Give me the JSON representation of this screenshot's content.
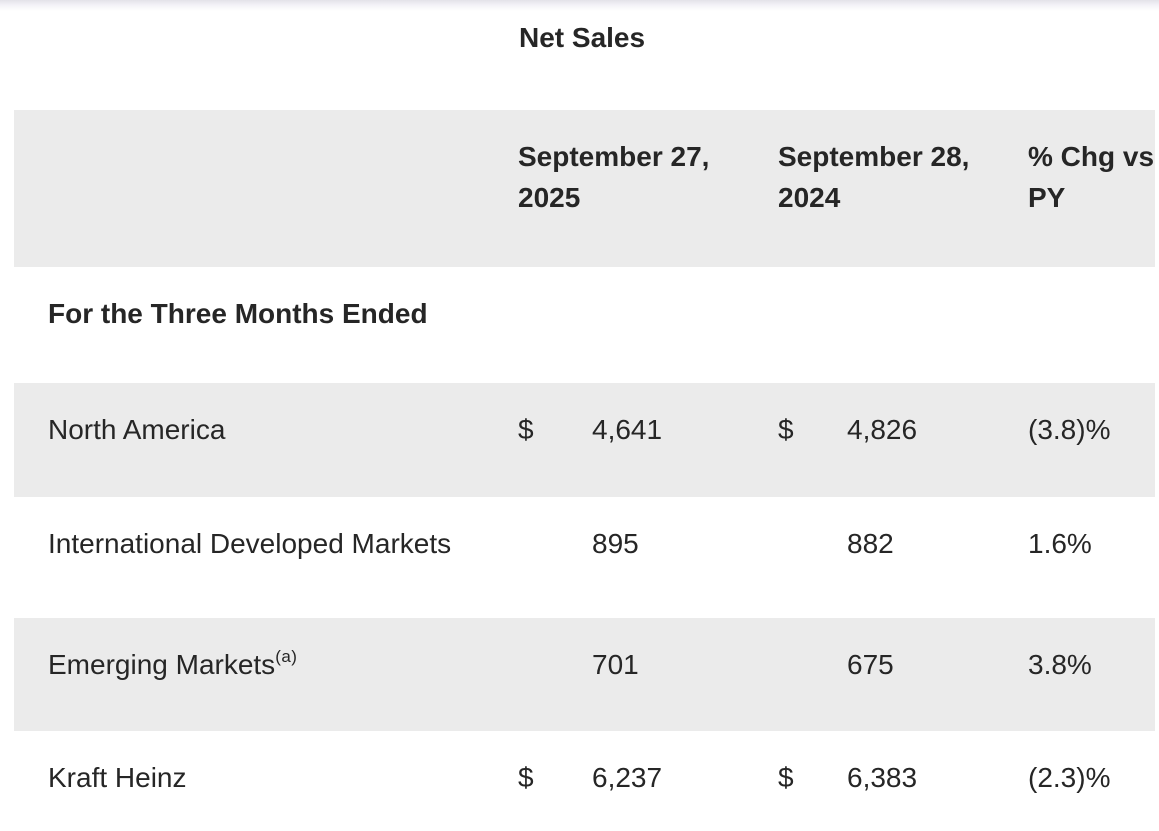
{
  "title": "Net Sales",
  "table": {
    "columns": {
      "col_2025": "September 27,\n2025",
      "col_2024": "September 28,\n2024",
      "col_chg": "% Chg vs\nPY"
    },
    "section_label": "For the Three Months Ended",
    "rows": [
      {
        "label": "North America",
        "sup": "",
        "cur_2025": "$",
        "val_2025": "4,641",
        "cur_2024": "$",
        "val_2024": "4,826",
        "chg": "(3.8)%"
      },
      {
        "label": "International Developed Markets",
        "sup": "",
        "cur_2025": "",
        "val_2025": "895",
        "cur_2024": "",
        "val_2024": "882",
        "chg": "1.6%"
      },
      {
        "label": "Emerging Markets",
        "sup": "(a)",
        "cur_2025": "",
        "val_2025": "701",
        "cur_2024": "",
        "val_2024": "675",
        "chg": "3.8%"
      },
      {
        "label": "Kraft Heinz",
        "sup": "",
        "cur_2025": "$",
        "val_2025": "6,237",
        "cur_2024": "$",
        "val_2024": "6,383",
        "chg": "(2.3)%"
      }
    ]
  },
  "colors": {
    "band_gray": "#ebebeb",
    "text": "#262626"
  }
}
